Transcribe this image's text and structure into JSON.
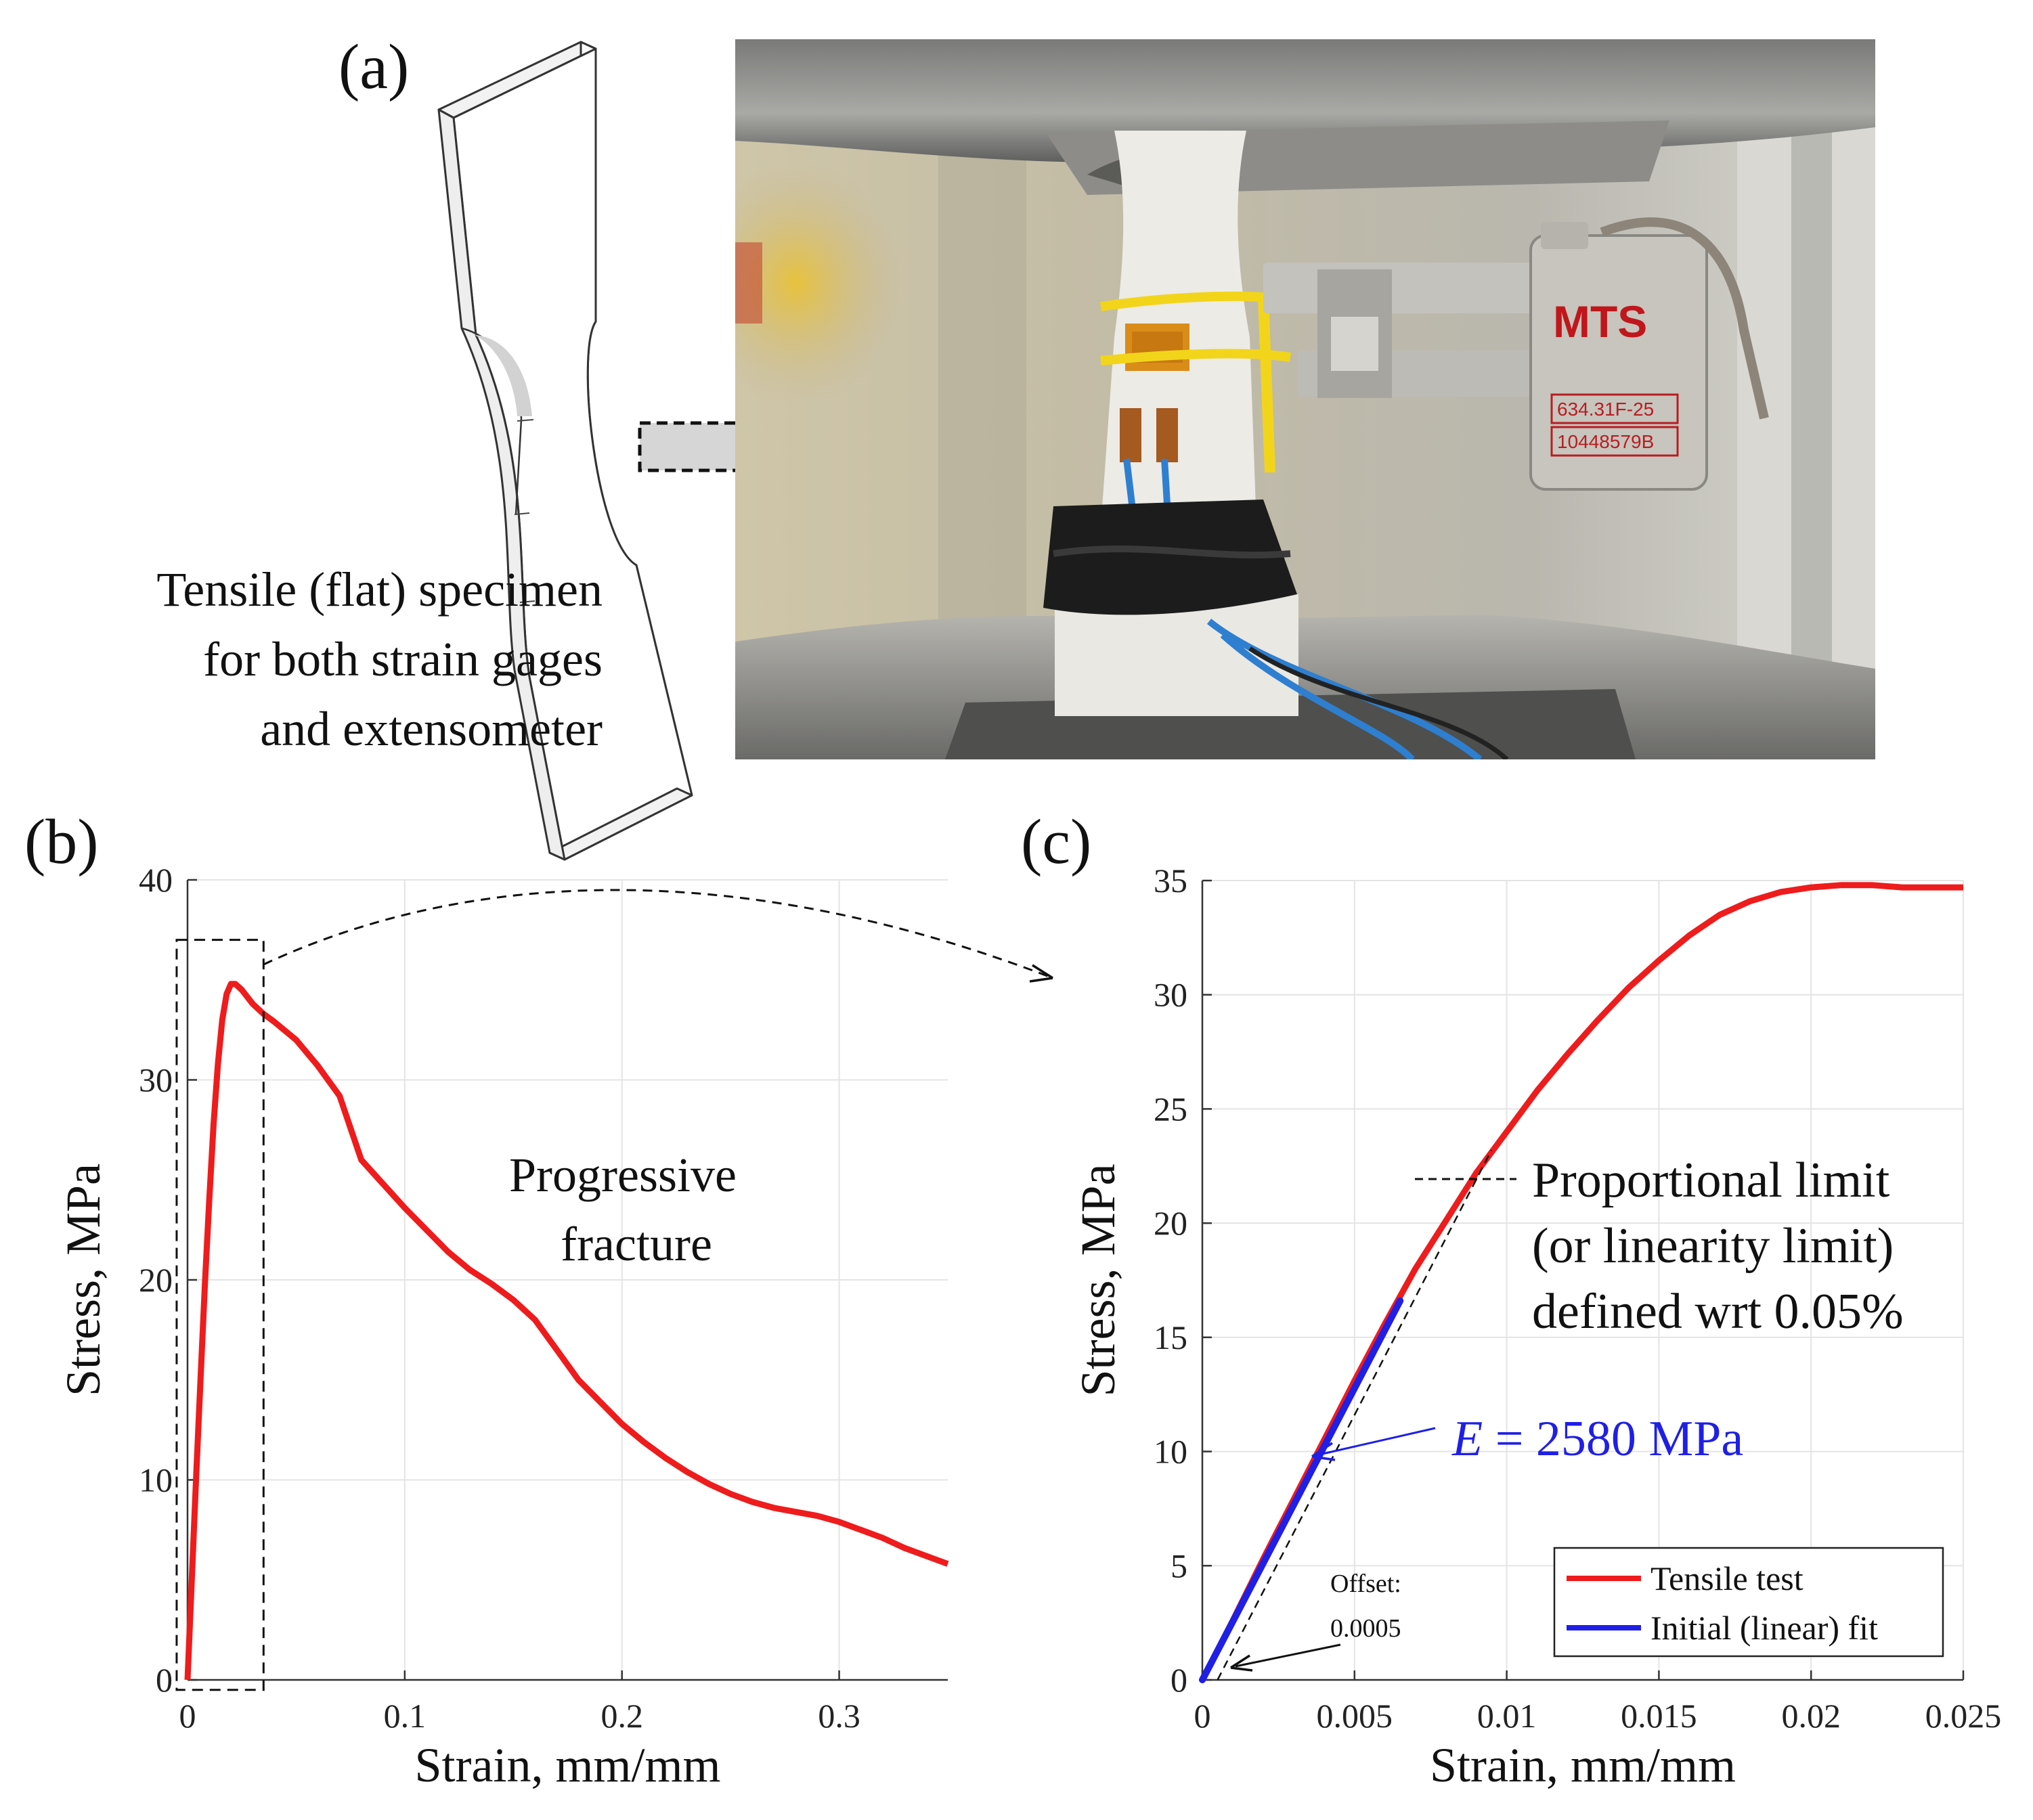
{
  "panels": {
    "a": {
      "label": "(a)",
      "caption": [
        "Tensile (flat) specimen",
        "for both strain gages",
        "and extensometer"
      ],
      "photo": {
        "extensometer_brand": "MTS",
        "extensometer_model": "634.31F-25",
        "extensometer_serial": "10448579B"
      }
    },
    "b": {
      "label": "(b)",
      "annotation": [
        "Progressive",
        "fracture"
      ]
    },
    "c": {
      "label": "(c)",
      "annotations": {
        "proportional_limit": [
          "Proportional limit",
          "(or linearity limit)",
          "defined wrt 0.05%"
        ],
        "modulus_symbol": "E",
        "modulus_value": " = 2580 MPa",
        "offset": [
          "Offset:",
          "0.0005"
        ]
      }
    }
  },
  "colors": {
    "tensile": "#ee1c1c",
    "fit": "#1f1fe6",
    "grid": "#e4e4e4",
    "axis": "#333333"
  },
  "chart_data": [
    {
      "id": "b",
      "type": "line",
      "xlabel": "Strain, mm/mm",
      "ylabel": "Stress, MPa",
      "xlim": [
        0,
        0.35
      ],
      "ylim": [
        0,
        40
      ],
      "xticks": [
        0,
        0.1,
        0.2,
        0.3
      ],
      "xtick_labels": [
        "0",
        "0.1",
        "0.2",
        "0.3"
      ],
      "yticks": [
        0,
        10,
        20,
        30,
        40
      ],
      "ytick_labels": [
        "0",
        "10",
        "20",
        "30",
        "40"
      ],
      "grid": true,
      "series": [
        {
          "name": "Tensile test",
          "x": [
            0,
            0.002,
            0.004,
            0.006,
            0.008,
            0.01,
            0.012,
            0.014,
            0.016,
            0.018,
            0.02,
            0.022,
            0.025,
            0.03,
            0.035,
            0.04,
            0.05,
            0.06,
            0.07,
            0.08,
            0.09,
            0.1,
            0.11,
            0.12,
            0.13,
            0.14,
            0.15,
            0.16,
            0.17,
            0.18,
            0.19,
            0.2,
            0.21,
            0.22,
            0.23,
            0.24,
            0.25,
            0.26,
            0.27,
            0.28,
            0.29,
            0.3,
            0.31,
            0.32,
            0.33,
            0.34,
            0.35
          ],
          "y": [
            0,
            5.1,
            10.2,
            15.1,
            19.8,
            24.0,
            27.8,
            30.8,
            33.0,
            34.3,
            34.8,
            34.8,
            34.5,
            33.8,
            33.3,
            32.9,
            32.0,
            30.7,
            29.2,
            26.0,
            24.8,
            23.6,
            22.5,
            21.4,
            20.5,
            19.8,
            19.0,
            18.0,
            16.5,
            15.0,
            13.9,
            12.8,
            11.9,
            11.1,
            10.4,
            9.8,
            9.3,
            8.9,
            8.6,
            8.4,
            8.2,
            7.9,
            7.5,
            7.1,
            6.6,
            6.2,
            5.8
          ]
        }
      ],
      "annotation": "Progressive fracture",
      "zoom_box": {
        "x": [
          -0.005,
          0.035
        ],
        "y": [
          -0.5,
          37.0
        ]
      }
    },
    {
      "id": "c",
      "type": "line",
      "xlabel": "Strain, mm/mm",
      "ylabel": "Stress, MPa",
      "xlim": [
        0,
        0.025
      ],
      "ylim": [
        0,
        35
      ],
      "xticks": [
        0,
        0.005,
        0.01,
        0.015,
        0.02,
        0.025
      ],
      "xtick_labels": [
        "0",
        "0.005",
        "0.01",
        "0.015",
        "0.02",
        "0.025"
      ],
      "yticks": [
        0,
        5,
        10,
        15,
        20,
        25,
        30,
        35
      ],
      "ytick_labels": [
        "0",
        "5",
        "10",
        "15",
        "20",
        "25",
        "30",
        "35"
      ],
      "grid": true,
      "legend_position": "bottom-right",
      "series": [
        {
          "name": "Tensile test",
          "x": [
            0,
            0.001,
            0.002,
            0.003,
            0.004,
            0.005,
            0.006,
            0.007,
            0.008,
            0.009,
            0.01,
            0.011,
            0.012,
            0.013,
            0.014,
            0.015,
            0.016,
            0.017,
            0.018,
            0.019,
            0.02,
            0.021,
            0.022,
            0.023,
            0.024,
            0.025
          ],
          "y": [
            0,
            2.6,
            5.3,
            7.9,
            10.5,
            13.1,
            15.6,
            18.0,
            20.1,
            22.2,
            24.0,
            25.8,
            27.4,
            28.9,
            30.3,
            31.5,
            32.6,
            33.5,
            34.1,
            34.5,
            34.7,
            34.8,
            34.8,
            34.7,
            34.7,
            34.7
          ]
        },
        {
          "name": "Initial (linear) fit",
          "x": [
            0,
            0.0065
          ],
          "y": [
            0,
            16.6
          ]
        }
      ],
      "offset_line": {
        "x": [
          0.0005,
          0.0095
        ],
        "y": [
          0,
          23.2
        ]
      },
      "annotations": [
        "Proportional limit (or linearity limit) defined wrt 0.05%",
        "E = 2580 MPa",
        "Offset: 0.0005"
      ]
    }
  ]
}
